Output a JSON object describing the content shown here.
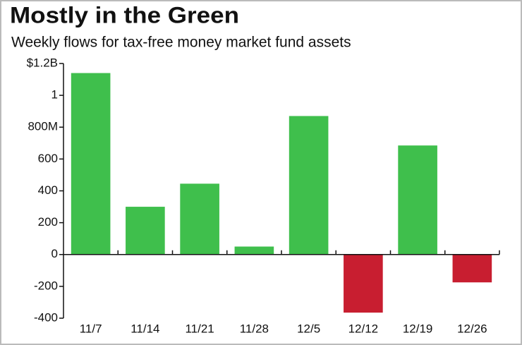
{
  "chart_data": {
    "type": "bar",
    "title": "Mostly in the Green",
    "subtitle": "Weekly flows for tax-free money market fund assets",
    "categories": [
      "11/7",
      "11/14",
      "11/21",
      "11/28",
      "12/5",
      "12/12",
      "12/19",
      "12/26"
    ],
    "values": [
      1140,
      300,
      445,
      50,
      870,
      -365,
      685,
      -175
    ],
    "colors": [
      "#3fbf4c",
      "#3fbf4c",
      "#3fbf4c",
      "#3fbf4c",
      "#3fbf4c",
      "#c81e30",
      "#3fbf4c",
      "#c81e30"
    ],
    "ylim": [
      -400,
      1200
    ],
    "yticks": [
      {
        "value": 1200,
        "label": "$1.2B"
      },
      {
        "value": 1000,
        "label": "1"
      },
      {
        "value": 800,
        "label": "800M"
      },
      600,
      400,
      200,
      0,
      -200,
      -400
    ],
    "grid": false
  }
}
